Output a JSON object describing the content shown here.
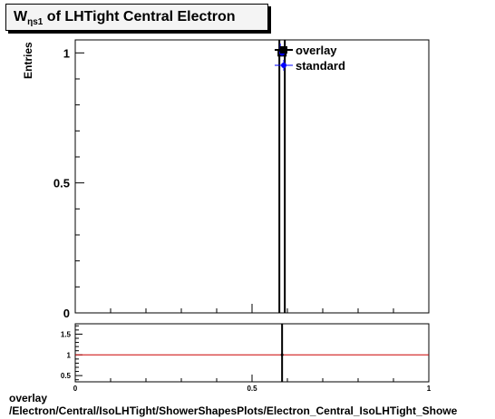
{
  "title": {
    "main": "W",
    "sub": "ηs1",
    "rest": " of LHTight Central  Electron"
  },
  "ylabel": "Entries",
  "footer": {
    "line1": "overlay",
    "line2": "/Electron/Central/IsoLHTight/ShowerShapesPlots/Electron_Central_IsoLHTight_Showe"
  },
  "colors": {
    "overlay": "#000000",
    "standard": "#0000ff",
    "ratio_line": "#cc0000"
  },
  "chart_data": [
    {
      "type": "scatter",
      "xlim": [
        0,
        1
      ],
      "ylim": [
        0,
        1.05
      ],
      "yticks": [
        {
          "v": 0,
          "label": "0"
        },
        {
          "v": 0.5,
          "label": "0.5"
        },
        {
          "v": 1,
          "label": "1"
        }
      ],
      "series": [
        {
          "name": "overlay",
          "x": [
            0.585
          ],
          "y": [
            1
          ]
        },
        {
          "name": "standard",
          "x": [
            0.585
          ],
          "y": [
            1
          ]
        }
      ],
      "legend": "top-right"
    },
    {
      "type": "scatter",
      "xlim": [
        0,
        1
      ],
      "ylim": [
        0.35,
        1.75
      ],
      "xticks": [
        {
          "v": 0,
          "label": "0"
        },
        {
          "v": 0.5,
          "label": "0.5"
        },
        {
          "v": 1,
          "label": "1"
        }
      ],
      "yticks": [
        {
          "v": 0.5,
          "label": "0.5"
        },
        {
          "v": 1,
          "label": "1"
        },
        {
          "v": 1.5,
          "label": "1.5"
        }
      ],
      "reference_line": 1,
      "series": [
        {
          "x": [
            0.585
          ],
          "y": [
            1
          ]
        }
      ]
    }
  ]
}
